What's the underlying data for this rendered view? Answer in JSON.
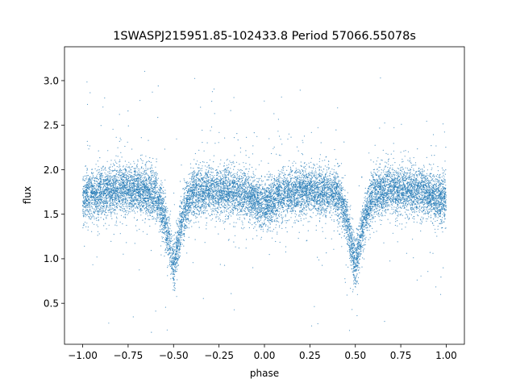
{
  "chart_data": {
    "type": "scatter",
    "title": "1SWASPJ215951.85-102433.8 Period 57066.55078s",
    "xlabel": "phase",
    "ylabel": "flux",
    "xlim": [
      -1.1,
      1.1
    ],
    "ylim": [
      0.04,
      3.38
    ],
    "xticks": [
      -1.0,
      -0.75,
      -0.5,
      -0.25,
      0.0,
      0.25,
      0.5,
      0.75,
      1.0
    ],
    "xtick_labels": [
      "−1.00",
      "−0.75",
      "−0.50",
      "−0.25",
      "0.00",
      "0.25",
      "0.50",
      "0.75",
      "1.00"
    ],
    "yticks": [
      0.5,
      1.0,
      1.5,
      2.0,
      2.5,
      3.0
    ],
    "ytick_labels": [
      "0.5",
      "1.0",
      "1.5",
      "2.0",
      "2.5",
      "3.0"
    ],
    "grid": false,
    "legend": "none",
    "marker_color": "#1f77b4",
    "series": [
      {
        "phase_range": [
          -1.0,
          1.0
        ],
        "baseline_flux": 1.72,
        "primary_eclipse": {
          "phase": 0.5,
          "min_flux": 1.02,
          "half_width": 0.06
        },
        "secondary_dip": {
          "phase": 0.0,
          "min_flux": 1.58,
          "half_width": 0.05
        },
        "x": [
          -1.0,
          -0.9,
          -0.8,
          -0.7,
          -0.6,
          -0.55,
          -0.5,
          -0.45,
          -0.4,
          -0.3,
          -0.2,
          -0.1,
          -0.05,
          0.0,
          0.05,
          0.1,
          0.2,
          0.3,
          0.4,
          0.45,
          0.5,
          0.55,
          0.6,
          0.7,
          0.8,
          0.9,
          1.0
        ],
        "y": [
          1.68,
          1.74,
          1.78,
          1.77,
          1.72,
          1.5,
          1.02,
          1.5,
          1.72,
          1.77,
          1.76,
          1.72,
          1.66,
          1.58,
          1.66,
          1.72,
          1.77,
          1.76,
          1.72,
          1.5,
          1.02,
          1.5,
          1.72,
          1.77,
          1.76,
          1.72,
          1.66
        ]
      }
    ]
  }
}
